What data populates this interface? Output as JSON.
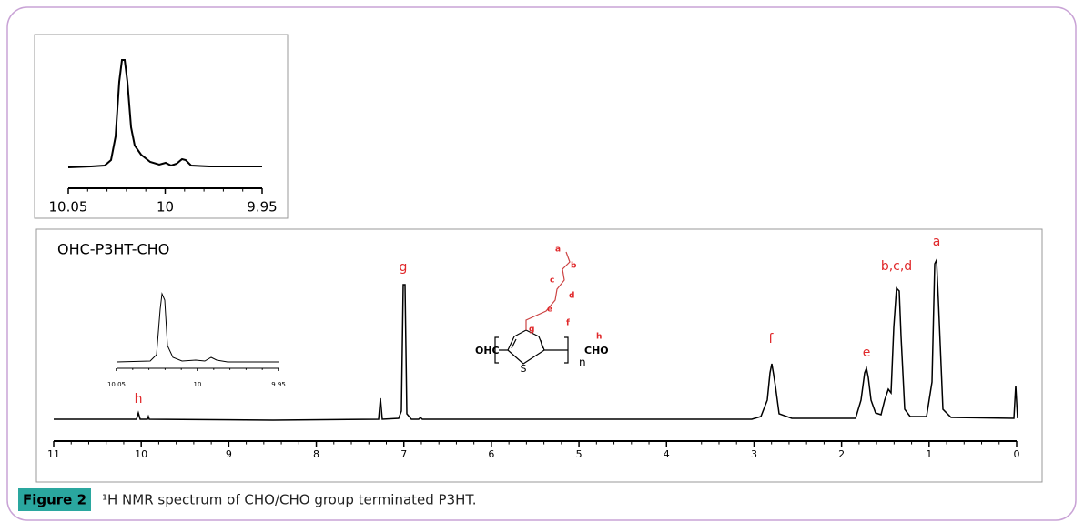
{
  "caption": {
    "label": "Figure 2",
    "text": "¹H NMR spectrum of CHO/CHO group terminated P3HT."
  },
  "zoom_inset": {
    "xticks": [
      10.05,
      10,
      9.95
    ]
  },
  "main_spectrum": {
    "title": "OHC-P3HT-CHO",
    "xticks": [
      11,
      10,
      9,
      8,
      7,
      6,
      5,
      4,
      3,
      2,
      1,
      0
    ],
    "peak_labels": [
      "h",
      "g",
      "f",
      "e",
      "b,c,d",
      "a"
    ],
    "inset": {
      "xticks": [
        10.05,
        10,
        9.95
      ]
    },
    "structure": {
      "end_groups": [
        "OHC",
        "CHO"
      ],
      "repeat": "n",
      "atom": "S",
      "chain_labels": [
        "a",
        "b",
        "c",
        "d",
        "e",
        "f",
        "g",
        "h"
      ]
    }
  }
}
